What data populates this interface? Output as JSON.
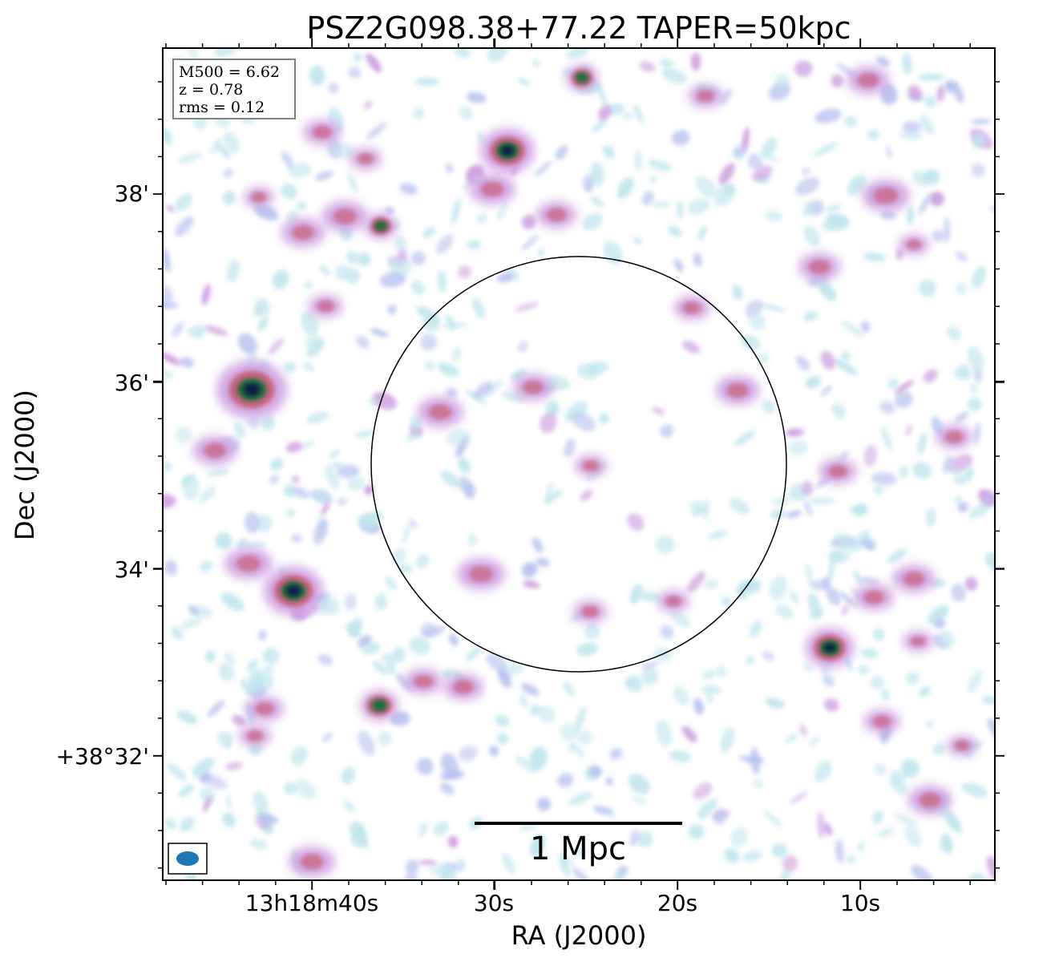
{
  "title": "PSZ2G098.38+77.22 TAPER=50kpc",
  "xlabel": "RA (J2000)",
  "ylabel": "Dec (J2000)",
  "x_ticks": [
    "13h18m40s",
    "30s",
    "20s",
    "10s"
  ],
  "y_ticks": [
    "38'",
    "36'",
    "34'",
    "+38°32'"
  ],
  "info": {
    "mass": "M500 = 6.62",
    "redshift": "z = 0.78",
    "rms": "rms = 0.12"
  },
  "scale_bar_label": "1 Mpc",
  "colors": {
    "faint": "#bfe6ee",
    "low": "#b9c3f0",
    "mid": "#cfa0e0",
    "high": "#c8607a",
    "peak": "#1a6e3a",
    "core": "#0a1a4a",
    "beam": "#1f77b4"
  }
}
